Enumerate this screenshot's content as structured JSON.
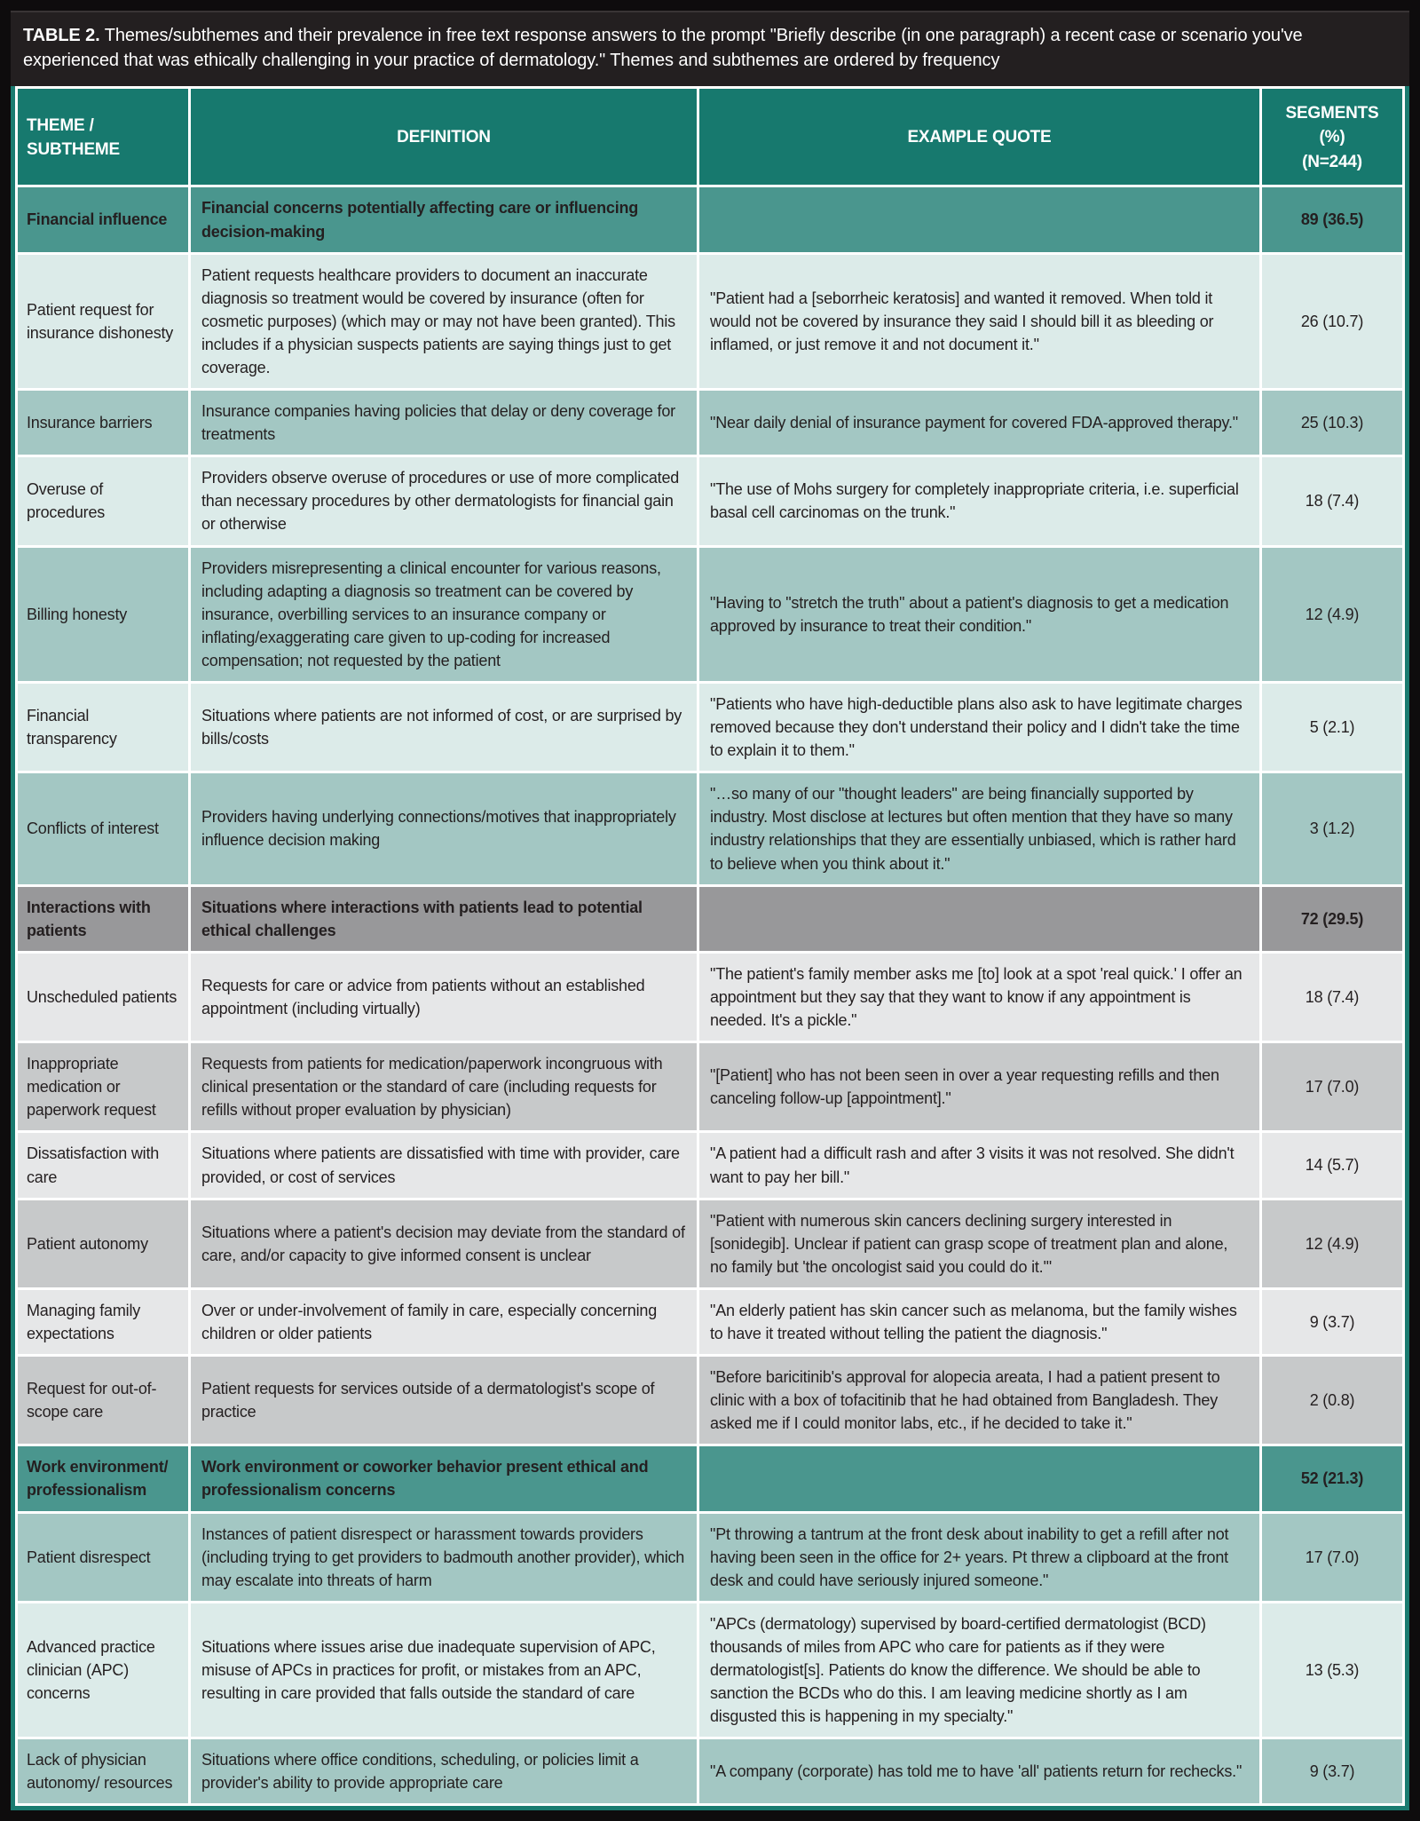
{
  "title": {
    "label": "TABLE 2.",
    "text": " Themes/subthemes and their prevalence in free text response answers to the prompt \"Briefly describe (in one paragraph) a recent case or scenario you've experienced that was ethically challenging in your practice of dermatology.\" Themes and subthemes are ordered by frequency"
  },
  "columns": {
    "theme": "THEME / SUBTHEME",
    "definition": "DEFINITION",
    "quote": "EXAMPLE QUOTE",
    "segments_line1": "SEGMENTS (%)",
    "segments_line2": "(n=244)"
  },
  "colors": {
    "frame_black": "#0e0c0d",
    "title_bar": "#231f20",
    "header_teal": "#17796e",
    "outer_border_teal": "#1a7b70",
    "theme_row_teal": "#4a968e",
    "subtheme_teal_light": "#dcebe9",
    "subtheme_teal_medium": "#a3c7c3",
    "theme_row_gray": "#98989a",
    "subtheme_gray_light": "#e6e7e8",
    "subtheme_gray_medium": "#c7c9ca",
    "text": "#241f20",
    "gridline": "#ffffff"
  },
  "rows": [
    {
      "type": "theme",
      "palette": "teal",
      "shade": "",
      "theme": "Financial influence",
      "definition": "Financial concerns potentially affecting care or influencing decision-making",
      "quote": "",
      "segments": "89 (36.5)"
    },
    {
      "type": "subtheme",
      "palette": "teal",
      "shade": "light",
      "theme": "Patient request for insurance dishonesty",
      "definition": "Patient requests healthcare providers to document an inaccurate diagnosis so treatment would be covered by insurance (often for cosmetic purposes) (which may or may not have been granted). This includes if a physician suspects patients are saying things just to get coverage.",
      "quote": "\"Patient had a [seborrheic keratosis] and wanted it removed. When told it would not be covered by insurance they said I should bill it as bleeding or inflamed, or just remove it and not document it.\"",
      "segments": "26 (10.7)"
    },
    {
      "type": "subtheme",
      "palette": "teal",
      "shade": "medium",
      "theme": "Insurance barriers",
      "definition": "Insurance companies having policies that delay or deny coverage for treatments",
      "quote": "\"Near daily denial of insurance payment for covered FDA-approved therapy.\"",
      "segments": "25 (10.3)"
    },
    {
      "type": "subtheme",
      "palette": "teal",
      "shade": "light",
      "theme": "Overuse of procedures",
      "definition": "Providers observe overuse of procedures or use of more complicated than necessary procedures by other dermatologists for financial gain or otherwise",
      "quote": "\"The use of Mohs surgery for completely inappropriate criteria, i.e. superficial basal cell carcinomas on the trunk.\"",
      "segments": "18 (7.4)"
    },
    {
      "type": "subtheme",
      "palette": "teal",
      "shade": "medium",
      "theme": "Billing honesty",
      "definition": "Providers misrepresenting a clinical encounter for various reasons, including adapting a diagnosis so treatment can be covered by insurance, overbilling services to an insurance company or inflating/exaggerating care given to up-coding for increased compensation; not requested by the patient",
      "quote": "\"Having to \"stretch the truth\" about a patient's diagnosis to get a medication approved by insurance to treat their condition.\"",
      "segments": "12 (4.9)"
    },
    {
      "type": "subtheme",
      "palette": "teal",
      "shade": "light",
      "theme": "Financial transparency",
      "definition": "Situations where patients are not informed of cost, or are surprised by bills/costs",
      "quote": "\"Patients who have high-deductible plans also ask to have legitimate charges removed because they don't understand their policy and I didn't take the time to explain it to them.\"",
      "segments": "5 (2.1)"
    },
    {
      "type": "subtheme",
      "palette": "teal",
      "shade": "medium",
      "theme": "Conflicts of interest",
      "definition": "Providers having underlying connections/motives that inappropriately influence decision making",
      "quote": "\"…so many of our \"thought leaders\" are being financially supported by industry. Most disclose at lectures but often mention that they have so many industry relationships that they are essentially unbiased, which is rather hard to believe when you think about it.\"",
      "segments": "3 (1.2)"
    },
    {
      "type": "theme",
      "palette": "gray",
      "shade": "",
      "theme": "Interactions with patients",
      "definition": "Situations where interactions with patients lead to potential ethical challenges",
      "quote": "",
      "segments": "72 (29.5)"
    },
    {
      "type": "subtheme",
      "palette": "gray",
      "shade": "light",
      "theme": "Unscheduled patients",
      "definition": "Requests for care or advice from patients without an established appointment (including virtually)",
      "quote": "\"The patient's family member asks me [to] look at a spot 'real quick.' I offer an appointment but they say that they want to know if any appointment is needed. It's a pickle.\"",
      "segments": "18 (7.4)"
    },
    {
      "type": "subtheme",
      "palette": "gray",
      "shade": "medium",
      "theme": "Inappropriate medication or paperwork request",
      "definition": "Requests from patients for medication/paperwork incongruous with clinical presentation or the standard of care (including requests for refills without proper evaluation by physician)",
      "quote": "\"[Patient] who has not been seen in over a year requesting refills and then canceling follow-up [appointment].\"",
      "segments": "17 (7.0)"
    },
    {
      "type": "subtheme",
      "palette": "gray",
      "shade": "light",
      "theme": "Dissatisfaction with care",
      "definition": "Situations where patients are dissatisfied with time with provider, care provided, or cost of services",
      "quote": "\"A patient had a difficult rash and after 3 visits it was not resolved. She didn't want to pay her bill.\"",
      "segments": "14 (5.7)"
    },
    {
      "type": "subtheme",
      "palette": "gray",
      "shade": "medium",
      "theme": "Patient autonomy",
      "definition": "Situations where a patient's decision may deviate from the standard of care, and/or capacity to give informed consent is unclear",
      "quote": "\"Patient with numerous skin cancers declining surgery interested in [sonidegib]. Unclear if patient can grasp scope of treatment plan and alone, no family but 'the oncologist said you could do it.'\"",
      "segments": "12 (4.9)"
    },
    {
      "type": "subtheme",
      "palette": "gray",
      "shade": "light",
      "theme": "Managing family expectations",
      "definition": "Over or under-involvement of family in care, especially concerning children or older patients",
      "quote": "\"An elderly patient has skin cancer such as melanoma, but the family wishes to have it treated without telling the patient the diagnosis.\"",
      "segments": "9 (3.7)"
    },
    {
      "type": "subtheme",
      "palette": "gray",
      "shade": "medium",
      "theme": "Request for out-of-scope care",
      "definition": "Patient requests for services outside of a dermatologist's scope of practice",
      "quote": "\"Before baricitinib's approval for alopecia areata, I had a patient present to clinic with a box of tofacitinib that he had obtained from Bangladesh. They asked me if I could monitor labs, etc., if he decided to take it.\"",
      "segments": "2 (0.8)"
    },
    {
      "type": "theme",
      "palette": "teal",
      "shade": "",
      "theme": "Work environment/ professionalism",
      "definition": "Work environment or coworker behavior present ethical and professionalism concerns",
      "quote": "",
      "segments": "52 (21.3)"
    },
    {
      "type": "subtheme",
      "palette": "teal",
      "shade": "medium",
      "theme": "Patient disrespect",
      "definition": "Instances of patient disrespect or harassment towards providers (including trying to get providers to badmouth another provider), which may escalate into threats of harm",
      "quote": "\"Pt throwing a tantrum at the front desk about inability to get a refill after not having been seen in the office for 2+ years. Pt threw a clipboard at the front desk and could have seriously injured someone.\"",
      "segments": "17 (7.0)"
    },
    {
      "type": "subtheme",
      "palette": "teal",
      "shade": "light",
      "theme": "Advanced practice clinician (APC) concerns",
      "definition": "Situations where issues arise due inadequate supervision of APC, misuse of APCs in practices for profit, or mistakes from an APC, resulting in care provided that falls outside the standard of care",
      "quote": "\"APCs (dermatology) supervised by board-certified dermatologist (BCD) thousands of miles from APC who care for patients as if they were dermatologist[s]. Patients do know the difference. We should be able to sanction the BCDs who do this. I am leaving medicine shortly as I am disgusted this is happening in my specialty.\"",
      "segments": "13 (5.3)"
    },
    {
      "type": "subtheme",
      "palette": "teal",
      "shade": "medium",
      "theme": "Lack of physician autonomy/ resources",
      "definition": "Situations where office conditions, scheduling, or policies limit a provider's ability to provide appropriate care",
      "quote": "\"A company (corporate) has told me to have 'all' patients return for rechecks.\"",
      "segments": "9 (3.7)"
    }
  ]
}
